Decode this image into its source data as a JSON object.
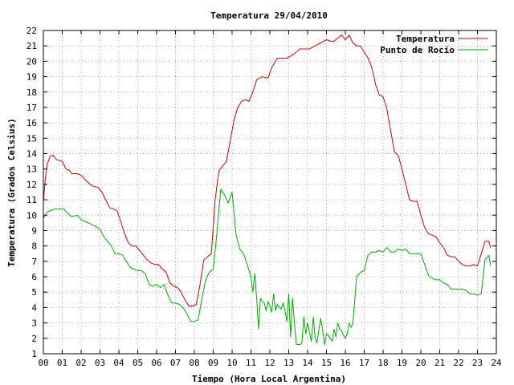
{
  "chart_data": {
    "type": "line",
    "title": "Temperatura 29/04/2010",
    "xlabel": "Tiempo (Hora Local Argentina)",
    "ylabel": "Temperatura (Grados Celsius)",
    "xlim": [
      0,
      24
    ],
    "ylim": [
      1,
      22
    ],
    "grid": true,
    "legend_position": "top-right",
    "x_ticks": [
      "00",
      "01",
      "02",
      "03",
      "04",
      "05",
      "06",
      "07",
      "08",
      "09",
      "10",
      "11",
      "12",
      "13",
      "14",
      "15",
      "16",
      "17",
      "18",
      "19",
      "20",
      "21",
      "22",
      "23",
      "24"
    ],
    "y_ticks": [
      "1",
      "2",
      "3",
      "4",
      "5",
      "6",
      "7",
      "8",
      "9",
      "10",
      "11",
      "12",
      "13",
      "14",
      "15",
      "16",
      "17",
      "18",
      "19",
      "20",
      "21",
      "22"
    ],
    "series": [
      {
        "name": "Temperatura",
        "color": "#cc0000",
        "x": [
          0,
          0.1,
          0.2,
          0.35,
          0.5,
          0.7,
          1.0,
          1.2,
          1.4,
          1.5,
          1.8,
          2.0,
          2.3,
          2.6,
          2.9,
          3.1,
          3.3,
          3.5,
          3.7,
          3.9,
          4.1,
          4.3,
          4.5,
          4.7,
          4.9,
          5.1,
          5.3,
          5.5,
          5.7,
          5.9,
          6.1,
          6.3,
          6.5,
          6.7,
          6.9,
          7.1,
          7.3,
          7.5,
          7.7,
          7.9,
          8.1,
          8.3,
          8.5,
          8.7,
          8.9,
          9.1,
          9.3,
          9.5,
          9.7,
          9.9,
          10.1,
          10.3,
          10.5,
          10.7,
          10.9,
          11.1,
          11.3,
          11.6,
          11.9,
          12.1,
          12.4,
          12.7,
          12.9,
          13.2,
          13.6,
          13.9,
          14.1,
          14.4,
          14.7,
          15.0,
          15.2,
          15.4,
          15.6,
          15.8,
          16.0,
          16.2,
          16.4,
          16.6,
          16.8,
          17.0,
          17.2,
          17.4,
          17.6,
          17.8,
          18.0,
          18.2,
          18.4,
          18.6,
          18.8,
          19.0,
          19.2,
          19.4,
          19.6,
          19.8,
          20.0,
          20.2,
          20.4,
          20.6,
          20.8,
          21.0,
          21.2,
          21.4,
          21.6,
          21.8,
          22.0,
          22.2,
          22.4,
          22.6,
          22.8,
          23.0,
          23.2,
          23.4,
          23.6,
          23.7
        ],
        "values": [
          10.9,
          12.3,
          13.3,
          13.8,
          13.9,
          13.6,
          13.5,
          13.0,
          12.9,
          12.7,
          12.7,
          12.6,
          12.2,
          11.9,
          11.8,
          11.5,
          11.0,
          10.5,
          10.4,
          10.3,
          9.6,
          8.8,
          8.2,
          8.0,
          8.0,
          7.7,
          7.4,
          7.1,
          6.9,
          6.8,
          6.8,
          6.5,
          6.3,
          5.6,
          5.4,
          5.3,
          5.0,
          4.5,
          4.1,
          4.1,
          4.2,
          5.5,
          7.1,
          7.3,
          7.5,
          11.0,
          12.9,
          13.2,
          13.5,
          14.8,
          16.2,
          17.0,
          17.4,
          17.5,
          17.4,
          18.0,
          18.8,
          19.0,
          18.9,
          19.6,
          20.2,
          20.2,
          20.2,
          20.4,
          20.8,
          20.8,
          20.8,
          21.0,
          21.2,
          21.4,
          21.3,
          21.3,
          21.5,
          21.7,
          21.4,
          21.7,
          21.2,
          21.0,
          21.0,
          20.6,
          20.2,
          19.6,
          18.5,
          17.8,
          17.7,
          16.9,
          15.5,
          14.1,
          13.9,
          13.0,
          12.0,
          11.0,
          10.9,
          10.9,
          10.0,
          9.2,
          8.8,
          8.7,
          8.6,
          8.2,
          7.9,
          7.4,
          7.3,
          7.3,
          7.0,
          6.8,
          6.7,
          6.7,
          6.8,
          6.7,
          7.5,
          8.3,
          8.3,
          7.9
        ]
      },
      {
        "name": "Punto de Rocío",
        "color": "#00aa00",
        "x": [
          0,
          0.2,
          0.4,
          0.6,
          0.9,
          1.1,
          1.3,
          1.5,
          1.8,
          2.0,
          2.2,
          2.4,
          2.7,
          3.0,
          3.2,
          3.4,
          3.6,
          3.8,
          4.0,
          4.2,
          4.4,
          4.6,
          4.8,
          5.0,
          5.2,
          5.4,
          5.6,
          5.8,
          6.0,
          6.2,
          6.4,
          6.6,
          6.8,
          7.0,
          7.2,
          7.4,
          7.6,
          7.8,
          8.0,
          8.2,
          8.4,
          8.6,
          8.8,
          9.0,
          9.2,
          9.4,
          9.6,
          9.8,
          10.0,
          10.2,
          10.4,
          10.6,
          10.8,
          11.0,
          11.1,
          11.2,
          11.3,
          11.4,
          11.5,
          11.6,
          11.7,
          11.8,
          11.9,
          12.0,
          12.1,
          12.2,
          12.3,
          12.4,
          12.5,
          12.6,
          12.7,
          12.8,
          12.9,
          13.0,
          13.1,
          13.2,
          13.3,
          13.4,
          13.5,
          13.6,
          13.7,
          13.8,
          13.9,
          14.0,
          14.1,
          14.2,
          14.3,
          14.4,
          14.5,
          14.6,
          14.7,
          14.8,
          14.9,
          15.0,
          15.1,
          15.2,
          15.3,
          15.4,
          15.5,
          15.6,
          15.7,
          15.8,
          15.9,
          16.0,
          16.1,
          16.2,
          16.3,
          16.4,
          16.6,
          16.8,
          17.0,
          17.2,
          17.4,
          17.6,
          17.8,
          18.0,
          18.2,
          18.4,
          18.6,
          18.8,
          19.0,
          19.2,
          19.4,
          19.6,
          19.8,
          20.0,
          20.2,
          20.4,
          20.6,
          20.8,
          21.0,
          21.2,
          21.4,
          21.6,
          21.8,
          22.0,
          22.2,
          22.4,
          22.6,
          22.8,
          23.0,
          23.2,
          23.4,
          23.6,
          23.7
        ],
        "values": [
          9.8,
          10.2,
          10.3,
          10.4,
          10.4,
          10.4,
          10.1,
          9.9,
          10.0,
          9.7,
          9.6,
          9.5,
          9.3,
          9.1,
          8.6,
          8.3,
          8.0,
          7.5,
          7.5,
          7.4,
          7.0,
          6.6,
          6.5,
          6.4,
          6.4,
          6.2,
          5.5,
          5.4,
          5.5,
          5.3,
          5.5,
          4.8,
          4.3,
          4.3,
          4.2,
          4.0,
          3.6,
          3.1,
          3.1,
          3.2,
          4.6,
          5.8,
          6.3,
          6.5,
          8.9,
          11.7,
          11.3,
          10.8,
          11.5,
          8.8,
          7.8,
          7.5,
          6.8,
          6.0,
          5.0,
          6.2,
          4.6,
          2.6,
          4.6,
          4.4,
          4.3,
          3.8,
          4.4,
          4.1,
          3.7,
          4.9,
          3.8,
          4.2,
          4.0,
          3.9,
          4.3,
          3.8,
          3.1,
          4.9,
          2.1,
          4.6,
          3.0,
          1.6,
          1.6,
          1.6,
          1.7,
          3.4,
          2.3,
          3.0,
          2.4,
          1.8,
          3.4,
          2.0,
          1.7,
          2.6,
          3.3,
          2.5,
          1.6,
          2.3,
          2.2,
          2.0,
          1.8,
          2.6,
          2.1,
          3.0,
          2.6,
          2.5,
          2.2,
          2.0,
          2.3,
          3.0,
          2.7,
          3.0,
          6.0,
          6.3,
          6.4,
          7.4,
          7.6,
          7.6,
          7.7,
          7.6,
          7.9,
          7.6,
          7.6,
          7.8,
          7.7,
          7.8,
          7.5,
          7.5,
          7.5,
          7.5,
          6.8,
          6.1,
          5.9,
          5.8,
          5.8,
          5.6,
          5.5,
          5.2,
          5.2,
          5.2,
          5.2,
          5.1,
          4.9,
          4.9,
          4.8,
          4.9,
          7.1,
          7.4,
          6.7
        ]
      }
    ]
  }
}
